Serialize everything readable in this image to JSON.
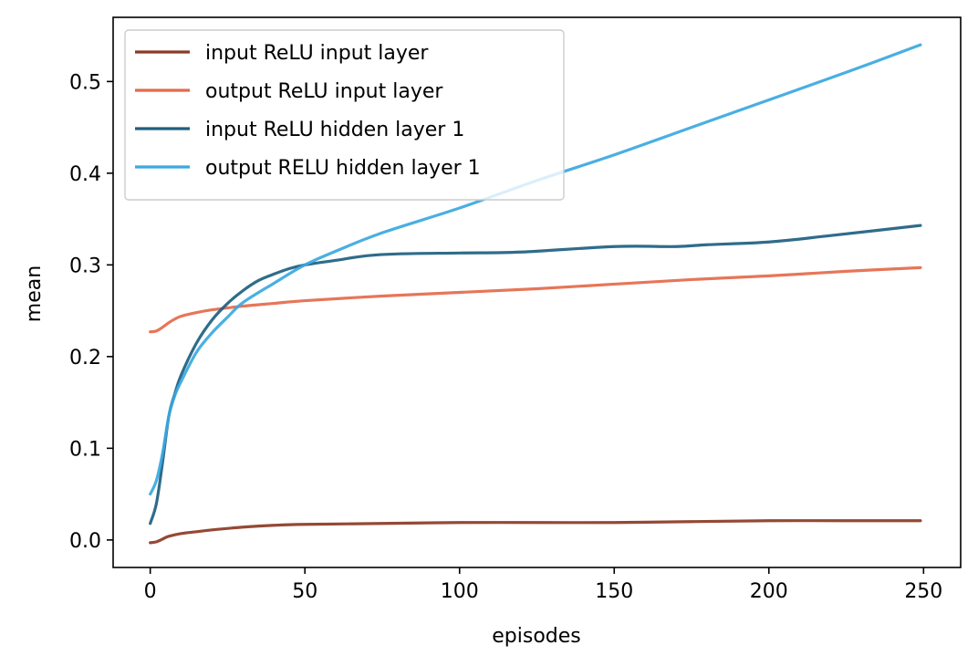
{
  "chart_data": {
    "type": "line",
    "title": "",
    "xlabel": "episodes",
    "ylabel": "mean",
    "xlim": [
      -12,
      262
    ],
    "ylim": [
      -0.03,
      0.57
    ],
    "xticks": [
      0,
      50,
      100,
      150,
      200,
      250
    ],
    "yticks": [
      0.0,
      0.1,
      0.2,
      0.3,
      0.4,
      0.5
    ],
    "xtick_labels": [
      "0",
      "50",
      "100",
      "150",
      "200",
      "250"
    ],
    "ytick_labels": [
      "0.0",
      "0.1",
      "0.2",
      "0.3",
      "0.4",
      "0.5"
    ],
    "grid": false,
    "legend_position": "top-left",
    "series": [
      {
        "name": "input ReLU input layer",
        "color": "#8b3a24",
        "x": [
          0,
          2,
          4,
          6,
          10,
          15,
          20,
          30,
          40,
          50,
          75,
          100,
          125,
          150,
          175,
          200,
          225,
          249
        ],
        "y": [
          -0.003,
          -0.002,
          0.001,
          0.004,
          0.007,
          0.009,
          0.011,
          0.014,
          0.016,
          0.017,
          0.018,
          0.019,
          0.019,
          0.019,
          0.02,
          0.021,
          0.021,
          0.021
        ]
      },
      {
        "name": "output ReLU input layer",
        "color": "#e46a4a",
        "x": [
          0,
          2,
          4,
          6,
          8,
          10,
          15,
          20,
          30,
          40,
          50,
          75,
          100,
          125,
          150,
          175,
          200,
          225,
          249
        ],
        "y": [
          0.227,
          0.228,
          0.232,
          0.237,
          0.241,
          0.244,
          0.248,
          0.251,
          0.255,
          0.258,
          0.261,
          0.266,
          0.27,
          0.274,
          0.279,
          0.284,
          0.288,
          0.293,
          0.297
        ]
      },
      {
        "name": "input ReLU hidden layer 1",
        "color": "#1d5f80",
        "x": [
          0,
          2,
          4,
          6,
          8,
          10,
          15,
          20,
          25,
          30,
          35,
          40,
          45,
          50,
          60,
          70,
          80,
          100,
          120,
          150,
          170,
          180,
          200,
          220,
          249
        ],
        "y": [
          0.018,
          0.04,
          0.085,
          0.135,
          0.16,
          0.18,
          0.215,
          0.24,
          0.258,
          0.272,
          0.283,
          0.29,
          0.296,
          0.3,
          0.305,
          0.31,
          0.312,
          0.313,
          0.314,
          0.32,
          0.32,
          0.322,
          0.325,
          0.332,
          0.343
        ]
      },
      {
        "name": "output RELU hidden layer 1",
        "color": "#3aa8e0",
        "x": [
          0,
          2,
          4,
          6,
          8,
          10,
          15,
          20,
          25,
          30,
          40,
          50,
          60,
          75,
          100,
          125,
          150,
          175,
          200,
          225,
          249
        ],
        "y": [
          0.05,
          0.065,
          0.095,
          0.135,
          0.158,
          0.173,
          0.205,
          0.226,
          0.243,
          0.259,
          0.28,
          0.3,
          0.315,
          0.335,
          0.362,
          0.392,
          0.42,
          0.45,
          0.48,
          0.51,
          0.54
        ]
      }
    ]
  }
}
